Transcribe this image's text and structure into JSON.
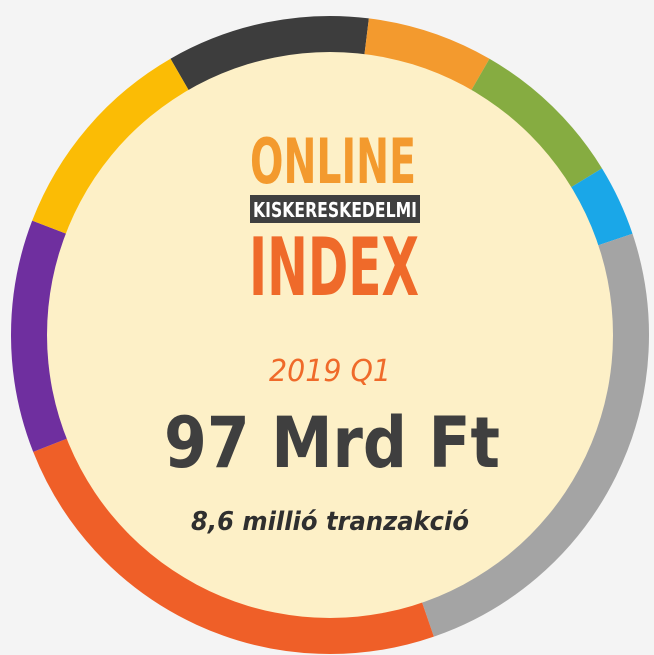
{
  "logo": {
    "line1": "ONLINE",
    "line2": "KISKERESKEDELMI",
    "line3": "INDEX"
  },
  "period": "2019 Q1",
  "amount": "97 Mrd Ft",
  "transactions": "8,6 millió tranzakció"
}
